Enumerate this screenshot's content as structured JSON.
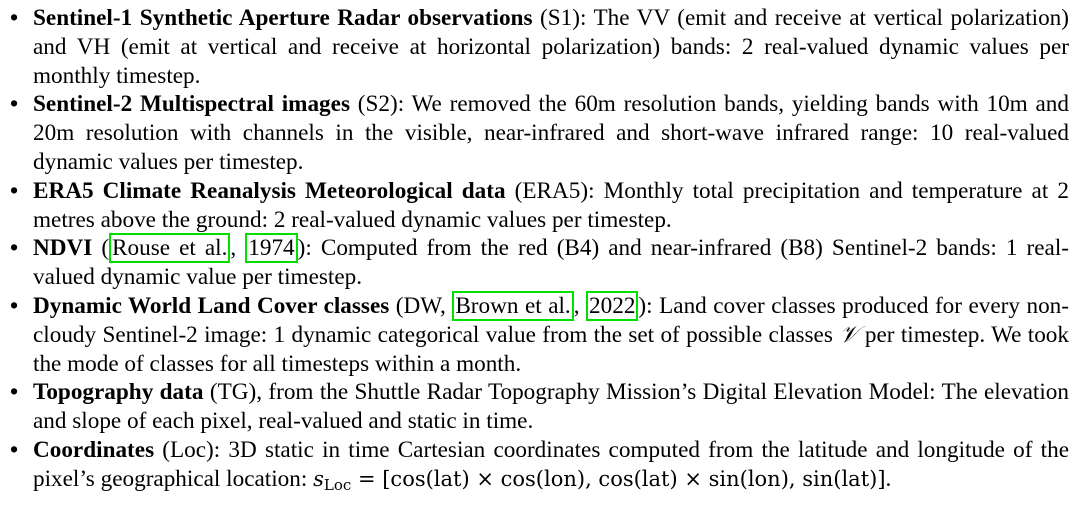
{
  "items": [
    {
      "term": "Sentinel-1 Synthetic Aperture Radar observations",
      "abbr": " (S1)",
      "text": ": The VV (emit and receive at vertical polarization) and VH (emit at vertical and receive at horizontal polarization) bands: 2 real-valued dynamic values per monthly timestep."
    },
    {
      "term": "Sentinel-2 Multispectral images",
      "abbr": " (S2)",
      "text": ": We removed the 60m resolution bands, yielding bands with 10m and 20m resolution with channels in the visible, near-infrared and short-wave infrared range: 10 real-valued dynamic values per timestep."
    },
    {
      "term": "ERA5 Climate Reanalysis Meteorological data",
      "abbr": " (ERA5)",
      "text": ": Monthly total precipitation and temperature at 2 metres above the ground: 2 real-valued dynamic values per timestep."
    },
    {
      "term": "NDVI",
      "pre": " (",
      "cite_author": "Rouse et al.",
      "cite_sep": ", ",
      "cite_year": "1974",
      "post": ")",
      "text": ": Computed from the red (B4) and near-infrared (B8) Sentinel-2 bands: 1 real-valued dynamic value per timestep."
    },
    {
      "term": "Dynamic World Land Cover classes",
      "pre": " (DW, ",
      "cite_author": "Brown et al.",
      "cite_sep": ", ",
      "cite_year": "2022",
      "post": ")",
      "text": ": Land cover classes produced for every non-cloudy Sentinel-2 image: 1 dynamic categorical value from the set of possible classes ",
      "symbol": "𝒱",
      "text2": " per timestep. We took the mode of classes for all timesteps within a month."
    },
    {
      "term": "Topography data",
      "abbr": " (TG)",
      "text": ", from the Shuttle Radar Topography Mission’s Digital Elevation Model: The elevation and slope of each pixel, real-valued and static in time."
    },
    {
      "term": "Coordinates",
      "abbr": " (Loc)",
      "text": ": 3D static in time Cartesian coordinates computed from the latitude and longitude of the pixel’s geographical location: ",
      "math_var": "s",
      "math_sub": "Loc",
      "math_expr": " = [cos(lat) × cos(lon), cos(lat) × sin(lon), sin(lat)]",
      "text2": "."
    }
  ],
  "bullet": "•"
}
